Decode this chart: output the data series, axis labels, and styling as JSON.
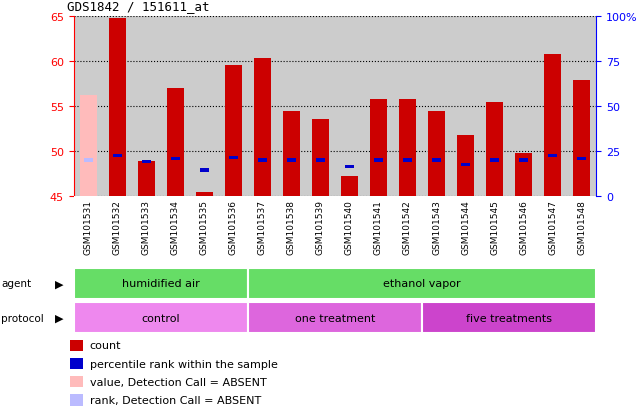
{
  "title": "GDS1842 / 151611_at",
  "samples": [
    "GSM101531",
    "GSM101532",
    "GSM101533",
    "GSM101534",
    "GSM101535",
    "GSM101536",
    "GSM101537",
    "GSM101538",
    "GSM101539",
    "GSM101540",
    "GSM101541",
    "GSM101542",
    "GSM101543",
    "GSM101544",
    "GSM101545",
    "GSM101546",
    "GSM101547",
    "GSM101548"
  ],
  "count_values": [
    56.2,
    64.8,
    48.9,
    57.0,
    45.5,
    59.6,
    60.3,
    54.5,
    53.6,
    47.2,
    55.8,
    55.8,
    54.5,
    51.8,
    55.4,
    49.8,
    60.8,
    57.9
  ],
  "rank_values": [
    49.0,
    49.5,
    48.8,
    49.2,
    47.9,
    49.3,
    49.0,
    49.0,
    49.0,
    48.3,
    49.0,
    49.0,
    49.0,
    48.5,
    49.0,
    49.0,
    49.5,
    49.2
  ],
  "absent_flags": [
    true,
    false,
    false,
    false,
    false,
    false,
    false,
    false,
    false,
    false,
    false,
    false,
    false,
    false,
    false,
    false,
    false,
    false
  ],
  "ylim": [
    45,
    65
  ],
  "y_ticks": [
    45,
    50,
    55,
    60,
    65
  ],
  "y2_ticks": [
    0,
    25,
    50,
    75,
    100
  ],
  "color_count": "#cc0000",
  "color_rank": "#0000cc",
  "color_absent_value": "#ffbbbb",
  "color_absent_rank": "#bbbbff",
  "color_plot_bg": "#cccccc",
  "color_label_bg": "#bbbbbb",
  "agent_color": "#66dd66",
  "protocol_colors": [
    "#ee88ee",
    "#dd66dd",
    "#cc44cc"
  ],
  "legend_items": [
    {
      "label": "count",
      "color": "#cc0000"
    },
    {
      "label": "percentile rank within the sample",
      "color": "#0000cc"
    },
    {
      "label": "value, Detection Call = ABSENT",
      "color": "#ffbbbb"
    },
    {
      "label": "rank, Detection Call = ABSENT",
      "color": "#bbbbff"
    }
  ]
}
